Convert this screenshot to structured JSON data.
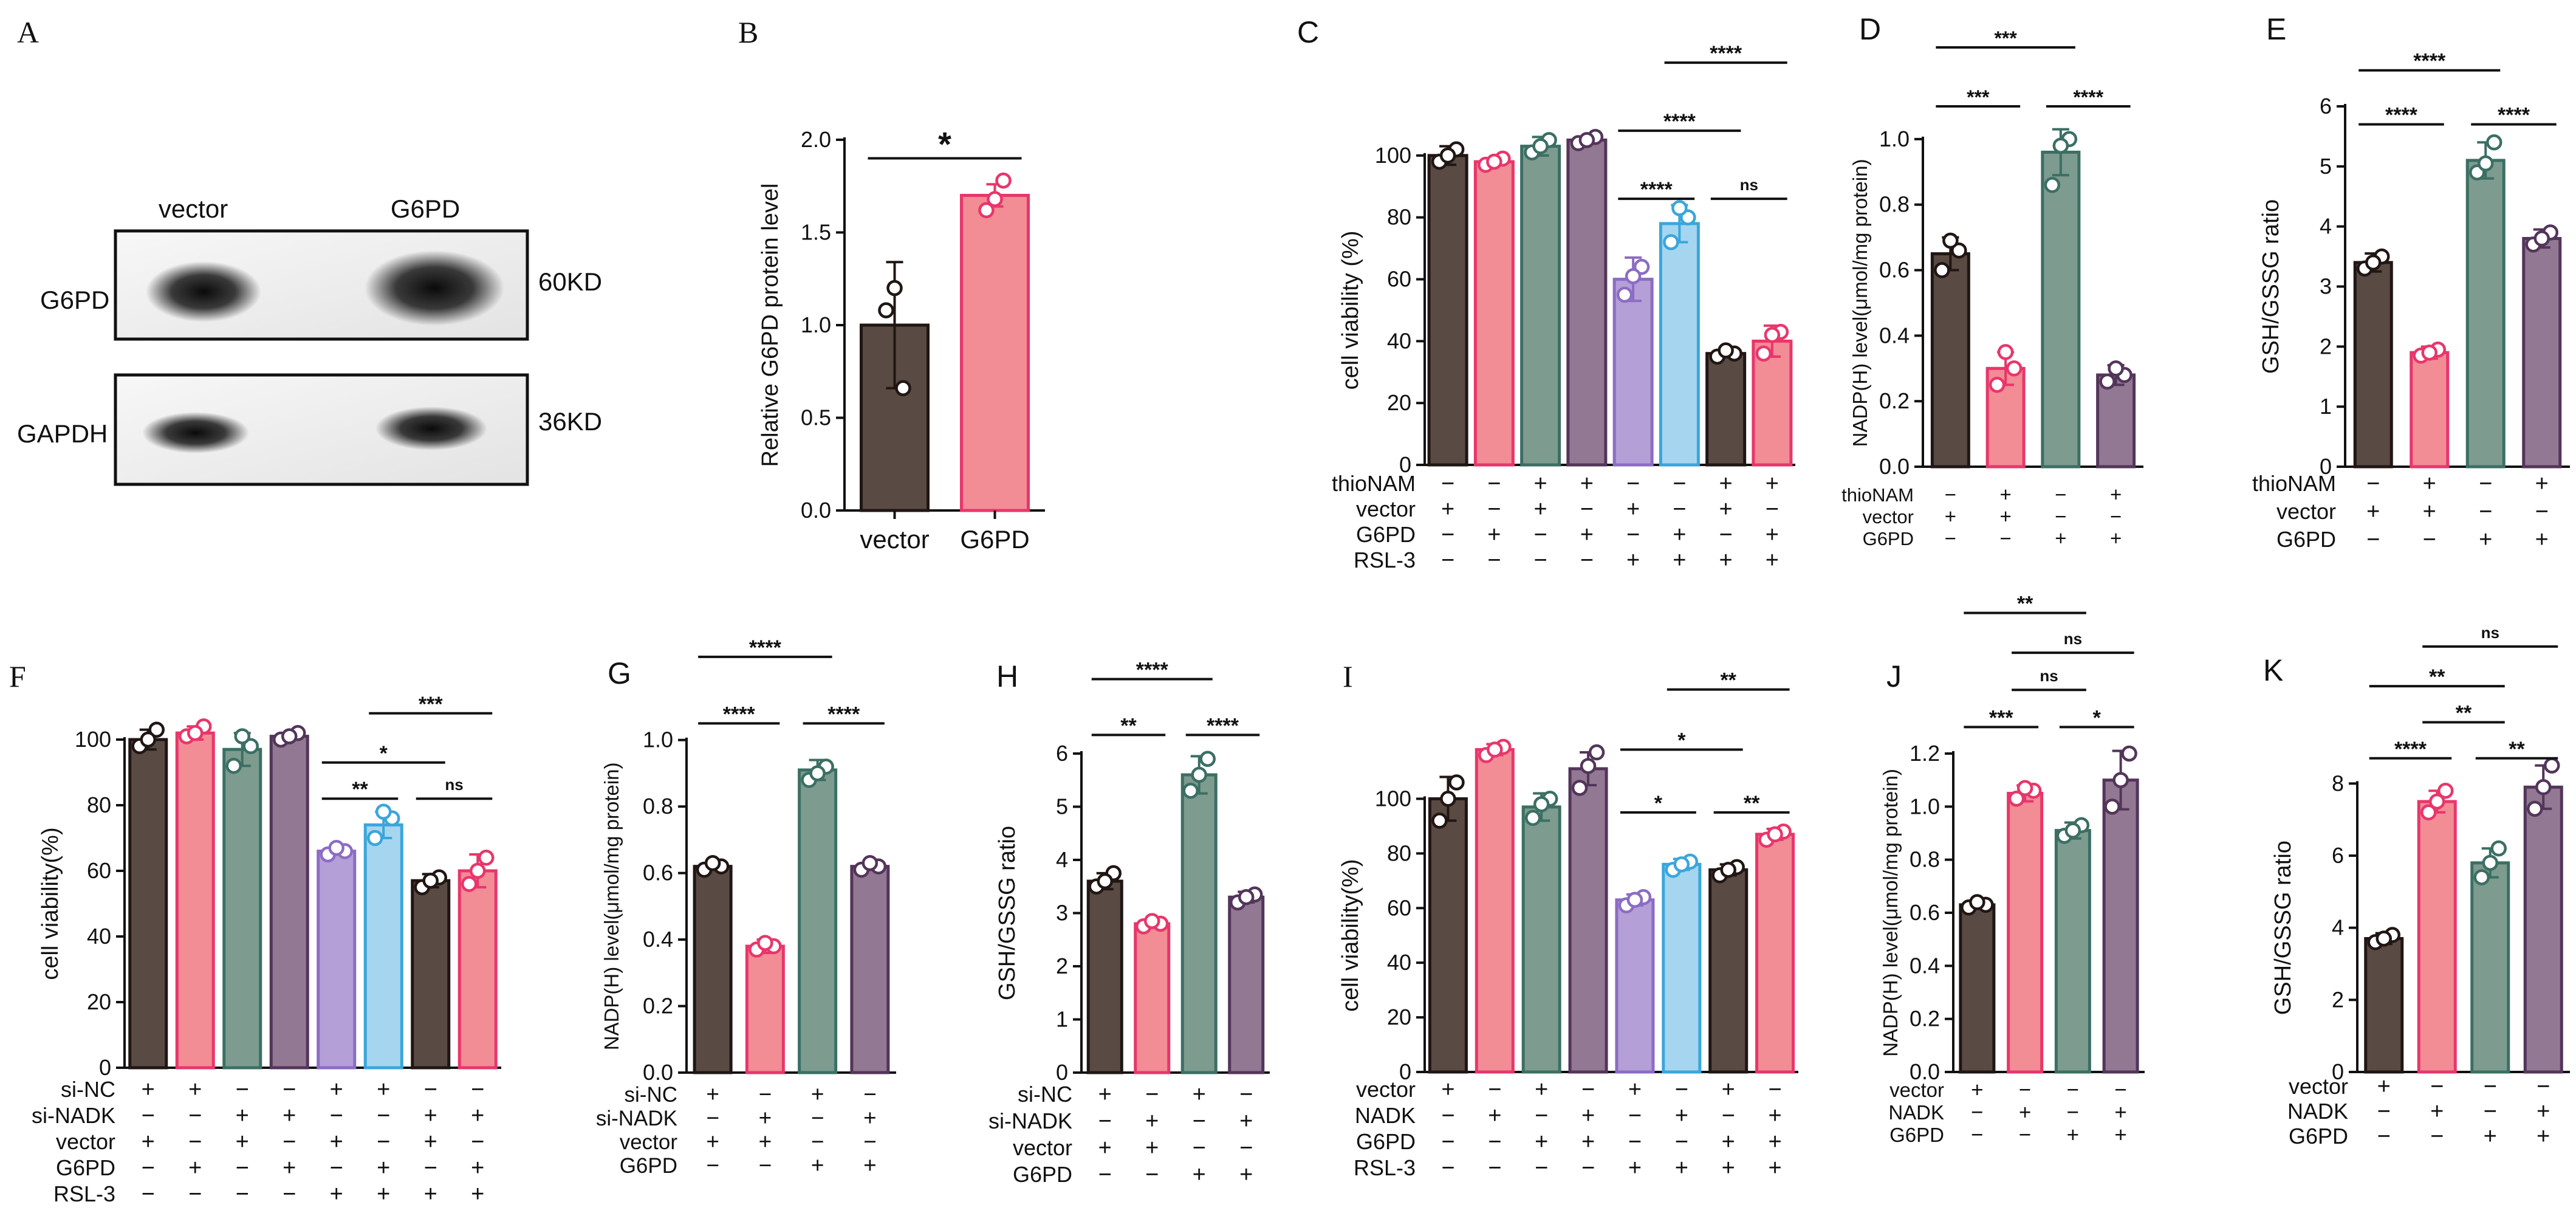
{
  "colors": {
    "dark": "#5a4a44",
    "pink": "#f28c95",
    "teal": "#7e9b90",
    "mauve": "#927892",
    "lilac": "#b49fd6",
    "sky": "#a6d6ef",
    "border_dark": "#201614",
    "border_pink": "#e8366b",
    "border_teal": "#3b6f63",
    "border_mauve": "#53355a",
    "border_lilac": "#8c6cc4",
    "border_sky": "#3aa6dc"
  },
  "blot": {
    "label": "A",
    "column_labels": [
      "vector",
      "G6PD"
    ],
    "rows": [
      {
        "protein": "G6PD",
        "size": "60KD"
      },
      {
        "protein": "GAPDH",
        "size": "36KD"
      }
    ]
  },
  "chart_data": [
    {
      "id": "B",
      "label": "B",
      "type": "bar",
      "ylabel": "Relative G6PD protein  level",
      "ylim": [
        0,
        2.0
      ],
      "yticks": [
        0,
        0.5,
        1.0,
        1.5,
        2.0
      ],
      "ydec": 1,
      "categories": [
        "vector",
        "G6PD"
      ],
      "values": [
        1.0,
        1.7
      ],
      "errors": [
        0.34,
        0.06
      ],
      "colors": [
        "dark",
        "pink"
      ],
      "points": [
        [
          1.08,
          0.66,
          1.2
        ],
        [
          1.62,
          1.78,
          1.68
        ]
      ],
      "sig": [
        {
          "from": 0,
          "to": 1,
          "level": 1.9,
          "text": "*"
        }
      ]
    },
    {
      "id": "C",
      "label": "C",
      "type": "bar",
      "ylabel": "cell viability (%)",
      "ylim": [
        0,
        110
      ],
      "yticks": [
        0,
        20,
        40,
        60,
        80,
        100
      ],
      "ydec": 0,
      "values": [
        100,
        98,
        103,
        105,
        60,
        78,
        36,
        40
      ],
      "errors": [
        3,
        1,
        3,
        1,
        7,
        6,
        1,
        5
      ],
      "colors": [
        "dark",
        "pink",
        "teal",
        "mauve",
        "lilac",
        "sky",
        "dark",
        "pink"
      ],
      "points": [
        [
          98,
          102,
          100
        ],
        [
          97,
          99,
          98
        ],
        [
          101,
          105,
          103
        ],
        [
          104,
          106,
          105
        ],
        [
          55,
          64,
          61
        ],
        [
          72,
          80,
          83
        ],
        [
          35,
          36,
          37
        ],
        [
          36,
          43,
          42
        ]
      ],
      "sig": [
        {
          "from": 4,
          "to": 5,
          "level": 86,
          "text": "****"
        },
        {
          "from": 4,
          "to": 6,
          "level": 108,
          "text": "****"
        },
        {
          "from": 6,
          "to": 7,
          "level": 86,
          "text": "ns"
        },
        {
          "from": 5,
          "to": 7,
          "level": 130,
          "text": "****"
        }
      ],
      "treatments": [
        {
          "name": "thioNAM",
          "signs": [
            "−",
            "−",
            "+",
            "+",
            "−",
            "−",
            "+",
            "+"
          ]
        },
        {
          "name": "vector",
          "signs": [
            "+",
            "−",
            "+",
            "−",
            "+",
            "−",
            "+",
            "−"
          ]
        },
        {
          "name": "G6PD",
          "signs": [
            "−",
            "+",
            "−",
            "+",
            "−",
            "+",
            "−",
            "+"
          ]
        },
        {
          "name": "RSL-3",
          "signs": [
            "−",
            "−",
            "−",
            "−",
            "+",
            "+",
            "+",
            "+"
          ]
        }
      ]
    },
    {
      "id": "D",
      "label": "D",
      "type": "bar",
      "ylabel": "NADP(H) level(μmol/mg protein)",
      "ylim": [
        0,
        1.1
      ],
      "yticks": [
        0,
        0.2,
        0.4,
        0.6,
        0.8,
        1.0
      ],
      "ydec": 1,
      "values": [
        0.65,
        0.3,
        0.96,
        0.28
      ],
      "errors": [
        0.05,
        0.05,
        0.07,
        0.03
      ],
      "colors": [
        "dark",
        "pink",
        "teal",
        "mauve"
      ],
      "points": [
        [
          0.6,
          0.66,
          0.69
        ],
        [
          0.25,
          0.3,
          0.35
        ],
        [
          0.86,
          1.0,
          0.98
        ],
        [
          0.26,
          0.28,
          0.3
        ]
      ],
      "sig": [
        {
          "from": 0,
          "to": 1,
          "level": 1.1,
          "text": "***"
        },
        {
          "from": 2,
          "to": 3,
          "level": 1.1,
          "text": "****"
        },
        {
          "from": 0,
          "to": 2,
          "level": 1.28,
          "text": "***"
        }
      ],
      "treatments": [
        {
          "name": "thioNAM",
          "signs": [
            "−",
            "+",
            "−",
            "+"
          ]
        },
        {
          "name": "vector",
          "signs": [
            "+",
            "+",
            "−",
            "−"
          ]
        },
        {
          "name": "G6PD",
          "signs": [
            "−",
            "−",
            "+",
            "+"
          ]
        }
      ]
    },
    {
      "id": "E",
      "label": "E",
      "type": "bar",
      "ylabel": "GSH/GSSG ratio",
      "ylim": [
        0,
        6
      ],
      "yticks": [
        0,
        1,
        2,
        3,
        4,
        5,
        6
      ],
      "ydec": 0,
      "values": [
        3.4,
        1.9,
        5.1,
        3.8
      ],
      "errors": [
        0.15,
        0.1,
        0.3,
        0.15
      ],
      "colors": [
        "dark",
        "pink",
        "teal",
        "mauve"
      ],
      "points": [
        [
          3.3,
          3.5,
          3.4
        ],
        [
          1.85,
          1.95,
          1.9
        ],
        [
          4.9,
          5.4,
          5.05
        ],
        [
          3.7,
          3.9,
          3.8
        ]
      ],
      "sig": [
        {
          "from": 0,
          "to": 1,
          "level": 5.7,
          "text": "****"
        },
        {
          "from": 2,
          "to": 3,
          "level": 5.7,
          "text": "****"
        },
        {
          "from": 0,
          "to": 2,
          "level": 6.6,
          "text": "****"
        }
      ],
      "treatments": [
        {
          "name": "thioNAM",
          "signs": [
            "−",
            "+",
            "−",
            "+"
          ]
        },
        {
          "name": "vector",
          "signs": [
            "+",
            "+",
            "−",
            "−"
          ]
        },
        {
          "name": "G6PD",
          "signs": [
            "−",
            "−",
            "+",
            "+"
          ]
        }
      ]
    },
    {
      "id": "F",
      "label": "F",
      "type": "bar",
      "ylabel": "cell viability(%)",
      "ylim": [
        0,
        110
      ],
      "yticks": [
        0,
        20,
        40,
        60,
        80,
        100
      ],
      "ydec": 0,
      "values": [
        100,
        102,
        97,
        101,
        66,
        74,
        57,
        60
      ],
      "errors": [
        3,
        2,
        5,
        1,
        1,
        4,
        2,
        5
      ],
      "colors": [
        "dark",
        "pink",
        "teal",
        "mauve",
        "lilac",
        "sky",
        "dark",
        "pink"
      ],
      "points": [
        [
          98,
          103,
          100
        ],
        [
          101,
          104,
          102
        ],
        [
          92,
          98,
          101
        ],
        [
          100,
          102,
          101
        ],
        [
          65,
          66,
          67
        ],
        [
          70,
          76,
          78
        ],
        [
          55,
          58,
          57
        ],
        [
          56,
          64,
          60
        ]
      ],
      "sig": [
        {
          "from": 4,
          "to": 5,
          "level": 82,
          "text": "**"
        },
        {
          "from": 6,
          "to": 7,
          "level": 82,
          "text": "ns"
        },
        {
          "from": 4,
          "to": 6,
          "level": 93,
          "text": "*"
        },
        {
          "from": 5,
          "to": 7,
          "level": 108,
          "text": "***"
        }
      ],
      "treatments": [
        {
          "name": "si-NC",
          "signs": [
            "+",
            "+",
            "−",
            "−",
            "+",
            "+",
            "−",
            "−"
          ]
        },
        {
          "name": "si-NADK",
          "signs": [
            "−",
            "−",
            "+",
            "+",
            "−",
            "−",
            "+",
            "+"
          ]
        },
        {
          "name": "vector",
          "signs": [
            "+",
            "−",
            "+",
            "−",
            "+",
            "−",
            "+",
            "−"
          ]
        },
        {
          "name": "G6PD",
          "signs": [
            "−",
            "+",
            "−",
            "+",
            "−",
            "+",
            "−",
            "+"
          ]
        },
        {
          "name": "RSL-3",
          "signs": [
            "−",
            "−",
            "−",
            "−",
            "+",
            "+",
            "+",
            "+"
          ]
        }
      ]
    },
    {
      "id": "G",
      "label": "G",
      "type": "bar",
      "ylabel": "NADP(H) level(μmol/mg protein)",
      "ylim": [
        0,
        1.1
      ],
      "yticks": [
        0,
        0.2,
        0.4,
        0.6,
        0.8,
        1.0
      ],
      "ydec": 1,
      "values": [
        0.62,
        0.38,
        0.91,
        0.62
      ],
      "errors": [
        0.01,
        0.02,
        0.03,
        0.01
      ],
      "colors": [
        "dark",
        "pink",
        "teal",
        "mauve"
      ],
      "points": [
        [
          0.61,
          0.62,
          0.63
        ],
        [
          0.37,
          0.38,
          0.39
        ],
        [
          0.88,
          0.92,
          0.9
        ],
        [
          0.61,
          0.62,
          0.63
        ]
      ],
      "sig": [
        {
          "from": 0,
          "to": 1,
          "level": 1.05,
          "text": "****"
        },
        {
          "from": 2,
          "to": 3,
          "level": 1.05,
          "text": "****"
        },
        {
          "from": 0,
          "to": 2,
          "level": 1.25,
          "text": "****"
        }
      ],
      "treatments": [
        {
          "name": "si-NC",
          "signs": [
            "+",
            "−",
            "+",
            "−"
          ]
        },
        {
          "name": "si-NADK",
          "signs": [
            "−",
            "+",
            "−",
            "+"
          ]
        },
        {
          "name": "vector",
          "signs": [
            "+",
            "+",
            "−",
            "−"
          ]
        },
        {
          "name": "G6PD",
          "signs": [
            "−",
            "−",
            "+",
            "+"
          ]
        }
      ]
    },
    {
      "id": "H",
      "label": "H",
      "type": "bar",
      "ylabel": "GSH/GSSG ratio",
      "ylim": [
        0,
        6
      ],
      "yticks": [
        0,
        1,
        2,
        3,
        4,
        5,
        6
      ],
      "ydec": 0,
      "values": [
        3.6,
        2.8,
        5.6,
        3.3
      ],
      "errors": [
        0.15,
        0.05,
        0.35,
        0.1
      ],
      "colors": [
        "dark",
        "pink",
        "teal",
        "mauve"
      ],
      "points": [
        [
          3.5,
          3.75,
          3.6
        ],
        [
          2.75,
          2.8,
          2.85
        ],
        [
          5.3,
          5.9,
          5.6
        ],
        [
          3.2,
          3.35,
          3.3
        ]
      ],
      "sig": [
        {
          "from": 0,
          "to": 1,
          "level": 6.35,
          "text": "**"
        },
        {
          "from": 2,
          "to": 3,
          "level": 6.35,
          "text": "****"
        },
        {
          "from": 0,
          "to": 2,
          "level": 7.4,
          "text": "****"
        }
      ],
      "treatments": [
        {
          "name": "si-NC",
          "signs": [
            "+",
            "−",
            "+",
            "−"
          ]
        },
        {
          "name": "si-NADK",
          "signs": [
            "−",
            "+",
            "−",
            "+"
          ]
        },
        {
          "name": "vector",
          "signs": [
            "+",
            "+",
            "−",
            "−"
          ]
        },
        {
          "name": "G6PD",
          "signs": [
            "−",
            "−",
            "+",
            "+"
          ]
        }
      ]
    },
    {
      "id": "I",
      "label": "I",
      "type": "bar",
      "ylabel": "cell viability(%)",
      "ylim": [
        0,
        115
      ],
      "yticks": [
        0,
        20,
        40,
        60,
        80,
        100
      ],
      "ydec": 0,
      "values": [
        100,
        118,
        97,
        111,
        63,
        76,
        74,
        87
      ],
      "errors": [
        8,
        2,
        5,
        6,
        2,
        2,
        2,
        2
      ],
      "colors": [
        "dark",
        "pink",
        "teal",
        "mauve",
        "lilac",
        "sky",
        "dark",
        "pink"
      ],
      "points": [
        [
          92,
          106,
          100
        ],
        [
          116,
          119,
          118
        ],
        [
          93,
          100,
          98
        ],
        [
          104,
          117,
          112
        ],
        [
          61,
          64,
          63
        ],
        [
          74,
          77,
          76
        ],
        [
          72,
          75,
          74
        ],
        [
          85,
          88,
          87
        ]
      ],
      "sig": [
        {
          "from": 4,
          "to": 5,
          "level": 95,
          "text": "*"
        },
        {
          "from": 6,
          "to": 7,
          "level": 95,
          "text": "**"
        },
        {
          "from": 4,
          "to": 6,
          "level": 118,
          "text": "*"
        },
        {
          "from": 5,
          "to": 7,
          "level": 140,
          "text": "**"
        }
      ],
      "treatments": [
        {
          "name": "vector",
          "signs": [
            "+",
            "−",
            "+",
            "−",
            "+",
            "−",
            "+",
            "−"
          ]
        },
        {
          "name": "NADK",
          "signs": [
            "−",
            "+",
            "−",
            "+",
            "−",
            "+",
            "−",
            "+"
          ]
        },
        {
          "name": "G6PD",
          "signs": [
            "−",
            "−",
            "+",
            "+",
            "−",
            "−",
            "+",
            "+"
          ]
        },
        {
          "name": "RSL-3",
          "signs": [
            "−",
            "−",
            "−",
            "−",
            "+",
            "+",
            "+",
            "+"
          ]
        }
      ]
    },
    {
      "id": "J",
      "label": "J",
      "type": "bar",
      "ylabel": "NADP(H) level(μmol/mg protein)",
      "ylim": [
        0,
        1.2
      ],
      "yticks": [
        0,
        0.2,
        0.4,
        0.6,
        0.8,
        1.0,
        1.2
      ],
      "ydec": 1,
      "values": [
        0.63,
        1.05,
        0.91,
        1.1
      ],
      "errors": [
        0.01,
        0.03,
        0.03,
        0.11
      ],
      "colors": [
        "dark",
        "pink",
        "teal",
        "mauve"
      ],
      "points": [
        [
          0.62,
          0.63,
          0.64
        ],
        [
          1.03,
          1.06,
          1.07
        ],
        [
          0.89,
          0.93,
          0.91
        ],
        [
          1.0,
          1.2,
          1.1
        ]
      ],
      "sig": [
        {
          "from": 0,
          "to": 1,
          "level": 1.3,
          "text": "***"
        },
        {
          "from": 2,
          "to": 3,
          "level": 1.3,
          "text": "*"
        },
        {
          "from": 1,
          "to": 2,
          "level": 1.44,
          "text": "ns"
        },
        {
          "from": 1,
          "to": 3,
          "level": 1.58,
          "text": "ns"
        },
        {
          "from": 0,
          "to": 2,
          "level": 1.73,
          "text": "**"
        }
      ],
      "treatments": [
        {
          "name": "vector",
          "signs": [
            "+",
            "−",
            "−",
            "−"
          ]
        },
        {
          "name": "NADK",
          "signs": [
            "−",
            "+",
            "−",
            "+"
          ]
        },
        {
          "name": "G6PD",
          "signs": [
            "−",
            "−",
            "+",
            "+"
          ]
        }
      ]
    },
    {
      "id": "K",
      "label": "K",
      "type": "bar",
      "ylabel": "GSH/GSSG ratio",
      "ylim": [
        0,
        9
      ],
      "yticks": [
        0,
        2,
        4,
        6,
        8
      ],
      "ydec": 0,
      "values": [
        3.7,
        7.5,
        5.8,
        7.9
      ],
      "errors": [
        0.15,
        0.3,
        0.4,
        0.6
      ],
      "colors": [
        "dark",
        "pink",
        "teal",
        "mauve"
      ],
      "points": [
        [
          3.6,
          3.8,
          3.7
        ],
        [
          7.2,
          7.8,
          7.5
        ],
        [
          5.4,
          6.2,
          5.8
        ],
        [
          7.3,
          8.5,
          7.9
        ]
      ],
      "sig": [
        {
          "from": 0,
          "to": 1,
          "level": 8.7,
          "text": "****"
        },
        {
          "from": 2,
          "to": 3,
          "level": 8.7,
          "text": "**"
        },
        {
          "from": 1,
          "to": 2,
          "level": 9.7,
          "text": "**"
        },
        {
          "from": 0,
          "to": 2,
          "level": 10.7,
          "text": "**"
        },
        {
          "from": 1,
          "to": 3,
          "level": 11.8,
          "text": "ns"
        }
      ],
      "treatments": [
        {
          "name": "vector",
          "signs": [
            "+",
            "−",
            "−",
            "−"
          ]
        },
        {
          "name": "NADK",
          "signs": [
            "−",
            "+",
            "−",
            "+"
          ]
        },
        {
          "name": "G6PD",
          "signs": [
            "−",
            "−",
            "+",
            "+"
          ]
        }
      ]
    }
  ]
}
